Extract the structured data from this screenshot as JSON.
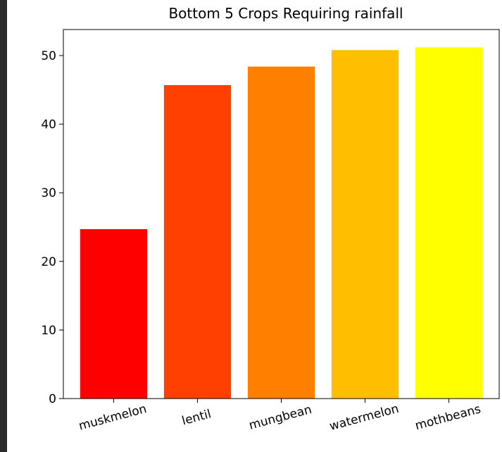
{
  "chart_data": {
    "type": "bar",
    "title": "Bottom 5 Crops Requiring rainfall",
    "categories": [
      "muskmelon",
      "lentil",
      "mungbean",
      "watermelon",
      "mothbeans"
    ],
    "values": [
      24.7,
      45.7,
      48.4,
      50.8,
      51.2
    ],
    "colors": [
      "#ff0000",
      "#ff4000",
      "#ff8000",
      "#ffbf00",
      "#ffff00"
    ],
    "ylim": [
      0,
      53.8
    ],
    "yticks": [
      0,
      10,
      20,
      30,
      40,
      50
    ],
    "xlabel": "",
    "ylabel": "",
    "grid": false,
    "legend": "none"
  }
}
